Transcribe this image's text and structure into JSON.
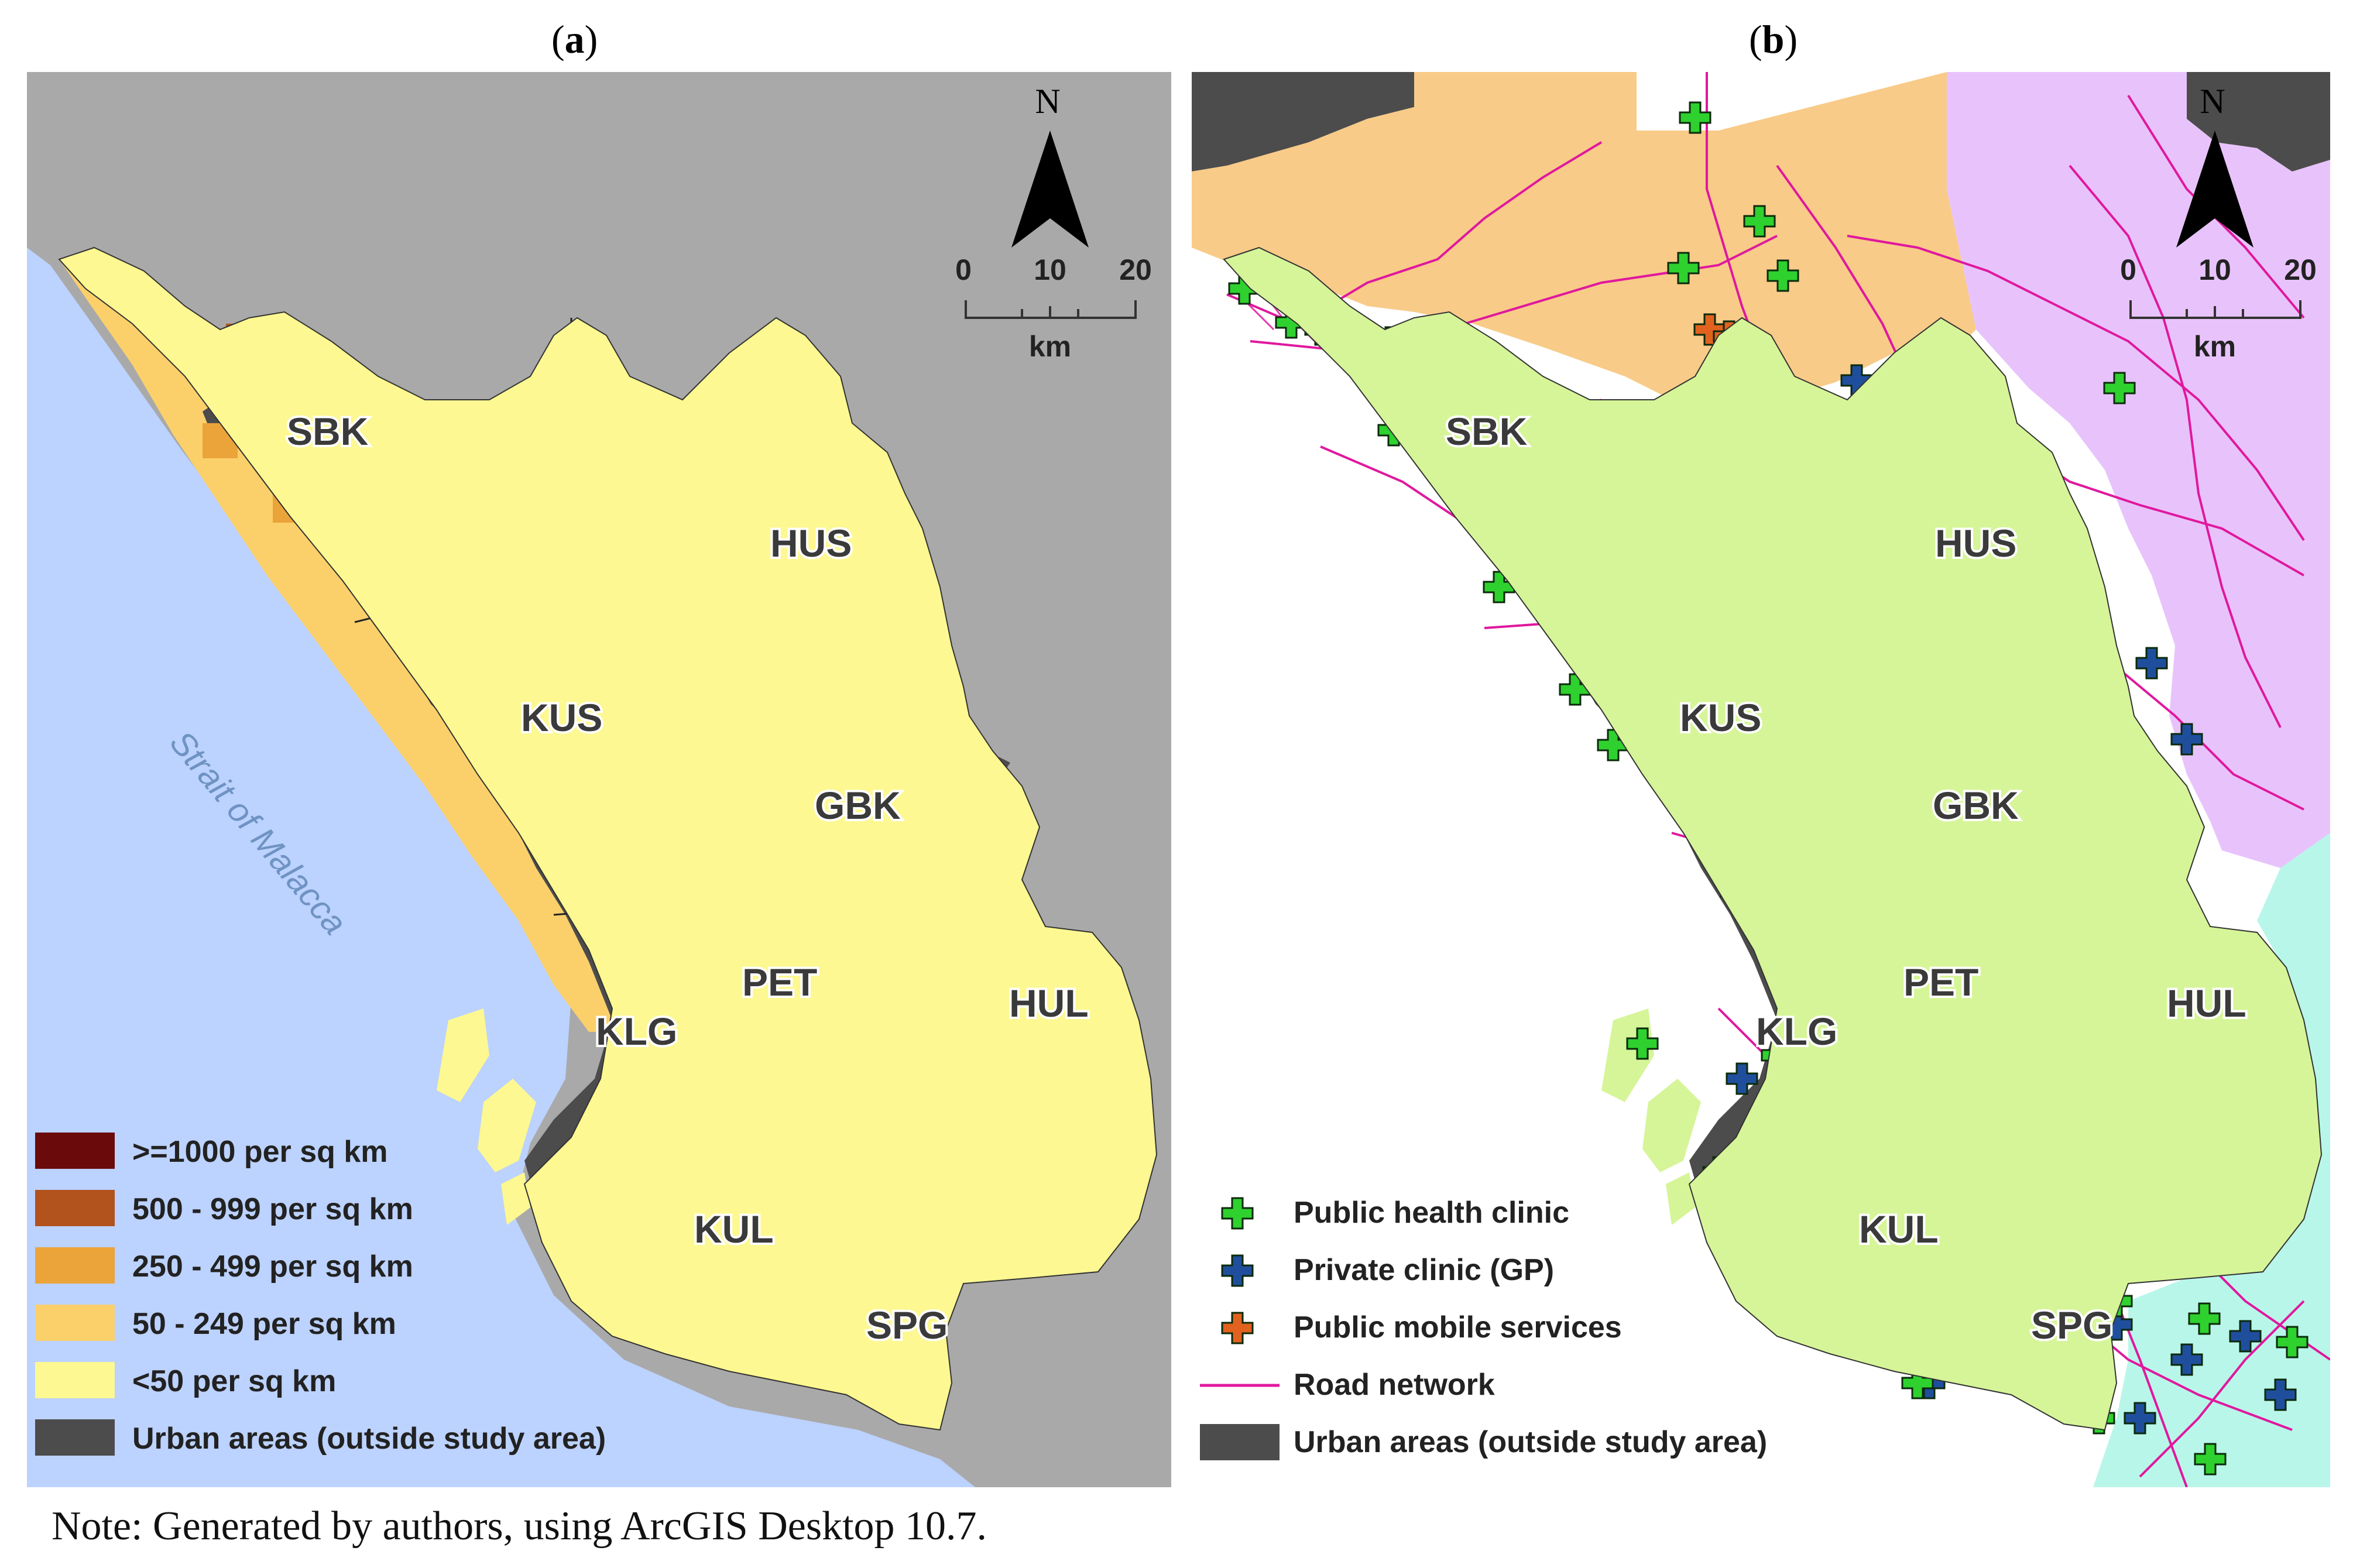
{
  "panel_a": {
    "title_open": "(",
    "title_letter": "a",
    "title_close": ")",
    "districts": [
      "SBK",
      "HUS",
      "KUS",
      "GBK",
      "PET",
      "HUL",
      "KLG",
      "KUL",
      "SPG"
    ],
    "sea_label": "Strait of Malacca",
    "north_label": "N",
    "scale_labels": [
      "0",
      "10",
      "20"
    ],
    "scale_unit": "km",
    "legend": [
      {
        "label": ">=1000 per sq km",
        "color": "#6b0a0a"
      },
      {
        "label": "500 - 999 per sq km",
        "color": "#b2521c"
      },
      {
        "label": "250 - 499 per sq km",
        "color": "#eba43a"
      },
      {
        "label": "50 - 249 per sq km",
        "color": "#fbd06b"
      },
      {
        "label": "<50 per sq km",
        "color": "#fdf891"
      },
      {
        "label": "Urban areas (outside study area)",
        "color": "#4c4c4c"
      }
    ]
  },
  "panel_b": {
    "title_open": "(",
    "title_letter": "b",
    "title_close": ")",
    "districts": [
      "SBK",
      "HUS",
      "KUS",
      "GBK",
      "PET",
      "HUL",
      "KLG",
      "KUL",
      "SPG"
    ],
    "north_label": "N",
    "scale_labels": [
      "0",
      "10",
      "20"
    ],
    "scale_unit": "km",
    "legend": [
      {
        "label": "Public health clinic",
        "color": "#2fd12f",
        "symbol": "plus"
      },
      {
        "label": "Private clinic (GP)",
        "color": "#1f4f9c",
        "symbol": "plus"
      },
      {
        "label": "Public mobile services",
        "color": "#e0621e",
        "symbol": "plus"
      },
      {
        "label": "Road network",
        "color": "#e0189e",
        "symbol": "line"
      },
      {
        "label": "Urban areas (outside study area)",
        "color": "#4c4c4c",
        "symbol": "box"
      }
    ]
  },
  "colors": {
    "sea": "#bcd2ff",
    "land_outside": "#a9a9a9",
    "urban": "#4c4c4c",
    "study_area_b": "#d6f598",
    "neighbor_orange": "#f8cb88",
    "neighbor_purple": "#e8c3fb",
    "neighbor_cyan": "#b9f6ea"
  },
  "note": "Note: Generated by authors, using ArcGIS Desktop 10.7."
}
